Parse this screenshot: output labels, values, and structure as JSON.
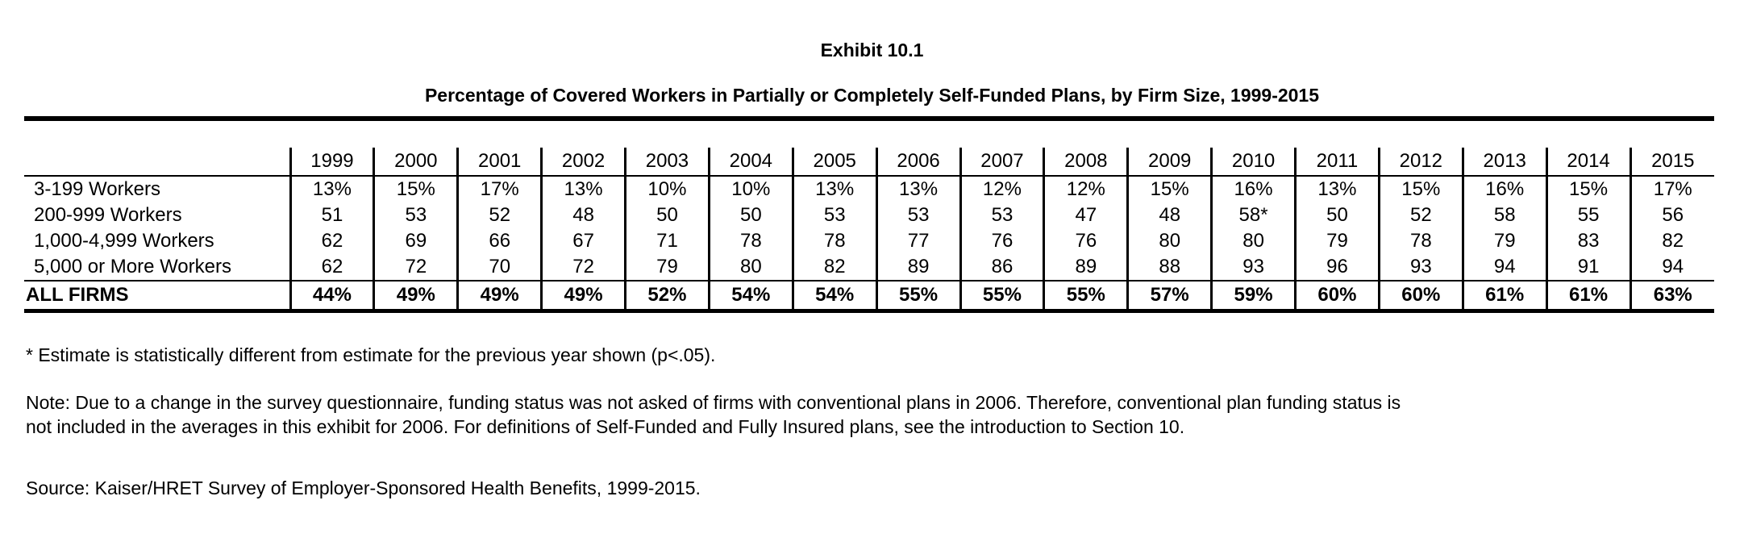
{
  "chart_data": {
    "type": "table",
    "title": "Exhibit 10.1",
    "subtitle": "Percentage of Covered Workers in Partially or Completely Self-Funded Plans, by Firm Size, 1999-2015",
    "columns": [
      "1999",
      "2000",
      "2001",
      "2002",
      "2003",
      "2004",
      "2005",
      "2006",
      "2007",
      "2008",
      "2009",
      "2010",
      "2011",
      "2012",
      "2013",
      "2014",
      "2015"
    ],
    "rows": [
      {
        "label": "3-199 Workers",
        "values": [
          "13%",
          "15%",
          "17%",
          "13%",
          "10%",
          "10%",
          "13%",
          "13%",
          "12%",
          "12%",
          "15%",
          "16%",
          "13%",
          "15%",
          "16%",
          "15%",
          "17%"
        ]
      },
      {
        "label": "200-999 Workers",
        "values": [
          "51",
          "53",
          "52",
          "48",
          "50",
          "50",
          "53",
          "53",
          "53",
          "47",
          "48",
          "58*",
          "50",
          "52",
          "58",
          "55",
          "56"
        ]
      },
      {
        "label": "1,000-4,999 Workers",
        "values": [
          "62",
          "69",
          "66",
          "67",
          "71",
          "78",
          "78",
          "77",
          "76",
          "76",
          "80",
          "80",
          "79",
          "78",
          "79",
          "83",
          "82"
        ]
      },
      {
        "label": "5,000 or More Workers",
        "values": [
          "62",
          "72",
          "70",
          "72",
          "79",
          "80",
          "82",
          "89",
          "86",
          "89",
          "88",
          "93",
          "96",
          "93",
          "94",
          "91",
          "94"
        ]
      }
    ],
    "total": {
      "label": "ALL FIRMS",
      "values": [
        "44%",
        "49%",
        "49%",
        "49%",
        "52%",
        "54%",
        "54%",
        "55%",
        "55%",
        "55%",
        "57%",
        "59%",
        "60%",
        "60%",
        "61%",
        "61%",
        "63%"
      ]
    }
  },
  "notes": {
    "footnote": "* Estimate is statistically different from estimate for the previous year shown (p<.05).",
    "note_line1": "Note: Due to a change in the survey questionnaire, funding status was not asked of firms with conventional plans in 2006. Therefore, conventional plan funding status is",
    "note_line2": "not included in the averages in this exhibit for 2006.  For definitions of Self-Funded and Fully Insured plans, see the introduction to Section 10.",
    "source": "Source: Kaiser/HRET Survey of Employer-Sponsored Health Benefits, 1999-2015."
  }
}
